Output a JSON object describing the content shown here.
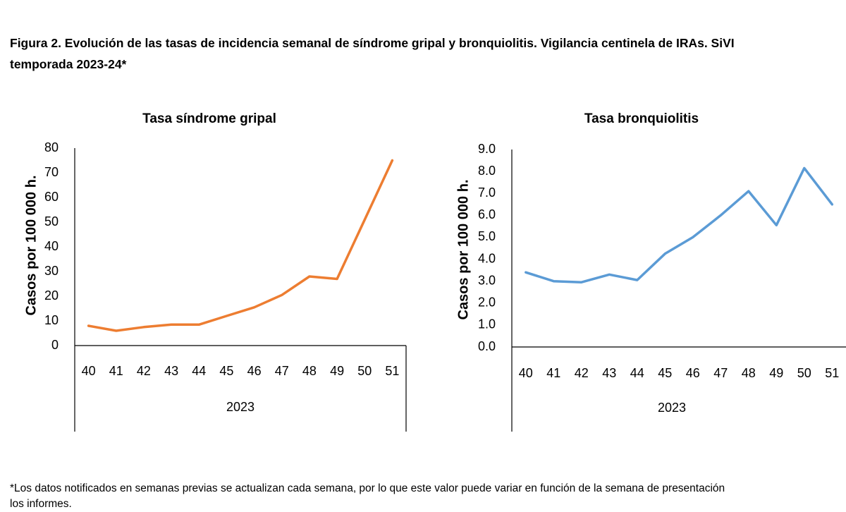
{
  "figure": {
    "title_line1": "Figura 2. Evolución de las tasas de incidencia semanal de síndrome gripal y bronquiolitis. Vigilancia centinela de IRAs. SiVI",
    "title_line2": "temporada 2023-24*",
    "footnote_line1": "*Los datos notificados en semanas previas se actualizan cada semana, por lo que este valor puede variar en función de la semana de presentación",
    "footnote_line2": "los informes."
  },
  "chart_data": [
    {
      "type": "line",
      "title": "Tasa síndrome gripal",
      "ylabel": "Casos por 100 000 h.",
      "xlabel": "2023",
      "categories": [
        "40",
        "41",
        "42",
        "43",
        "44",
        "45",
        "46",
        "47",
        "48",
        "49",
        "50",
        "51"
      ],
      "series": [
        {
          "values": [
            8,
            6,
            7.5,
            8.5,
            8.5,
            12,
            15.5,
            20.5,
            28,
            27,
            51,
            75
          ],
          "color": "#ED7D31"
        }
      ],
      "ylim": [
        0,
        80
      ],
      "yticks": [
        "0",
        "10",
        "20",
        "30",
        "40",
        "50",
        "60",
        "70",
        "80"
      ],
      "grid": false,
      "legend": "none"
    },
    {
      "type": "line",
      "title": "Tasa bronquiolitis",
      "ylabel": "Casos por 100 000 h.",
      "xlabel": "2023",
      "categories": [
        "40",
        "41",
        "42",
        "43",
        "44",
        "45",
        "46",
        "47",
        "48",
        "49",
        "50",
        "51"
      ],
      "series": [
        {
          "values": [
            3.4,
            3.0,
            2.95,
            3.3,
            3.05,
            4.25,
            5.0,
            6.0,
            7.1,
            5.55,
            8.15,
            6.5
          ],
          "color": "#5B9BD5"
        }
      ],
      "ylim": [
        0,
        9
      ],
      "yticks": [
        "0.0",
        "1.0",
        "2.0",
        "3.0",
        "4.0",
        "5.0",
        "6.0",
        "7.0",
        "8.0",
        "9.0"
      ],
      "grid": false,
      "legend": "none"
    }
  ]
}
